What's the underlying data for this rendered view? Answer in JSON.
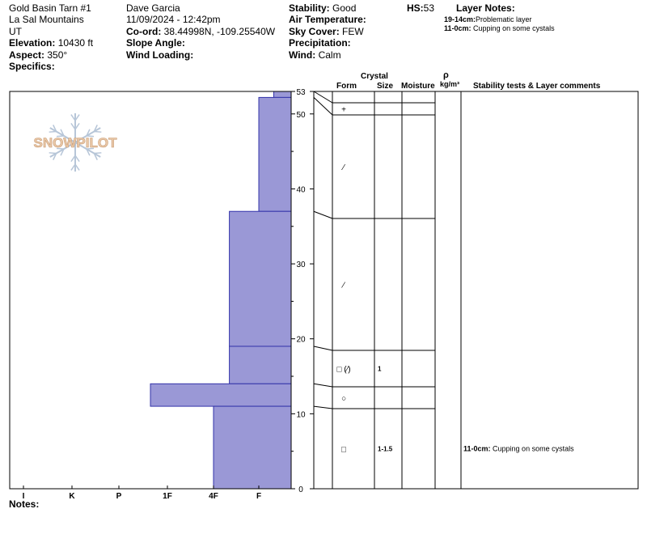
{
  "header": {
    "site": "Gold Basin Tarn #1",
    "range": "La Sal Mountains",
    "state": "UT",
    "elevation_label": "Elevation:",
    "elevation_value": "10430 ft",
    "aspect_label": "Aspect:",
    "aspect_value": "350°",
    "specifics_label": "Specifics:",
    "observer": "Dave Garcia",
    "datetime": "11/09/2024 - 12:42pm",
    "coord_label": "Co-ord:",
    "coord_value": "38.44998N, -109.25540W",
    "slope_label": "Slope Angle:",
    "wind_loading_label": "Wind Loading:",
    "stability_label": "Stability:",
    "stability_value": "Good",
    "air_temp_label": "Air Temperature:",
    "sky_label": "Sky Cover:",
    "sky_value": "FEW",
    "precip_label": "Precipitation:",
    "wind_label": "Wind:",
    "wind_value": "Calm",
    "hs_label": "HS:",
    "hs_value": "53",
    "layer_notes_title": "Layer Notes:",
    "layer_notes": [
      {
        "range": "19-14cm:",
        "text": "Problematic layer"
      },
      {
        "range": "11-0cm:",
        "text": "Cupping on some cystals"
      }
    ]
  },
  "logo_text": "SNOWPILOT",
  "notes_label": "Notes:",
  "table": {
    "header_crystal": "Crystal",
    "header_form": "Form",
    "header_size": "Size",
    "header_moisture": "Moisture",
    "header_rho": "ρ",
    "header_density": "kg/m³",
    "header_comments": "Stability tests & Layer comments"
  },
  "layer_rows": [
    {
      "form": "+",
      "size": "",
      "comment": ""
    },
    {
      "form": "⁄",
      "size": "",
      "comment": ""
    },
    {
      "form": "⁄",
      "size": "",
      "comment": ""
    },
    {
      "form": "□ (⁄)",
      "size": "1",
      "comment": ""
    },
    {
      "form": "○",
      "size": "",
      "comment": ""
    },
    {
      "form": "□",
      "size": "1-1.5",
      "comment_range": "11-0cm:",
      "comment": "Cupping on some cystals"
    }
  ],
  "chart_data": {
    "type": "bar",
    "description": "Snow profile hardness vs height",
    "hardness_categories": [
      "I",
      "K",
      "P",
      "1F",
      "4F",
      "F"
    ],
    "ylim": [
      0,
      53
    ],
    "y_ticks": [
      0,
      10,
      20,
      30,
      40,
      50,
      53
    ],
    "layers": [
      {
        "top": 53,
        "bottom": 52.2,
        "hardness": "F-"
      },
      {
        "top": 52.2,
        "bottom": 37,
        "hardness": "F"
      },
      {
        "top": 37,
        "bottom": 19,
        "hardness": "4F+"
      },
      {
        "top": 19,
        "bottom": 14,
        "hardness": "4F+"
      },
      {
        "top": 14,
        "bottom": 11,
        "hardness": "1F-"
      },
      {
        "top": 11,
        "bottom": 0,
        "hardness": "4F"
      }
    ],
    "layer_hardness_index": [
      5.33,
      5.0,
      4.35,
      4.35,
      2.65,
      4.0
    ],
    "colors": {
      "fill": "#9a98d6",
      "stroke": "#3333aa"
    }
  }
}
